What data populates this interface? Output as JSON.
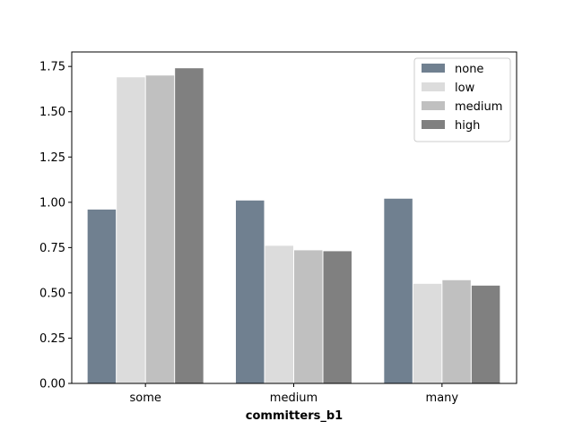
{
  "chart_data": {
    "type": "bar",
    "title": "",
    "xlabel": "committers_b1",
    "ylabel": "",
    "categories": [
      "some",
      "medium",
      "many"
    ],
    "series": [
      {
        "name": "none",
        "color": "#708090",
        "values": [
          0.96,
          1.01,
          1.02
        ]
      },
      {
        "name": "low",
        "color": "#dcdcdc",
        "values": [
          1.69,
          0.76,
          0.55
        ]
      },
      {
        "name": "medium",
        "color": "#c0c0c0",
        "values": [
          1.7,
          0.735,
          0.57
        ]
      },
      {
        "name": "high",
        "color": "#808080",
        "values": [
          1.74,
          0.73,
          0.54
        ]
      }
    ],
    "ylim": [
      0,
      1.83
    ],
    "yticks": [
      "0.00",
      "0.25",
      "0.50",
      "0.75",
      "1.00",
      "1.25",
      "1.50",
      "1.75"
    ],
    "grid": false,
    "legend_position": "top-right"
  }
}
